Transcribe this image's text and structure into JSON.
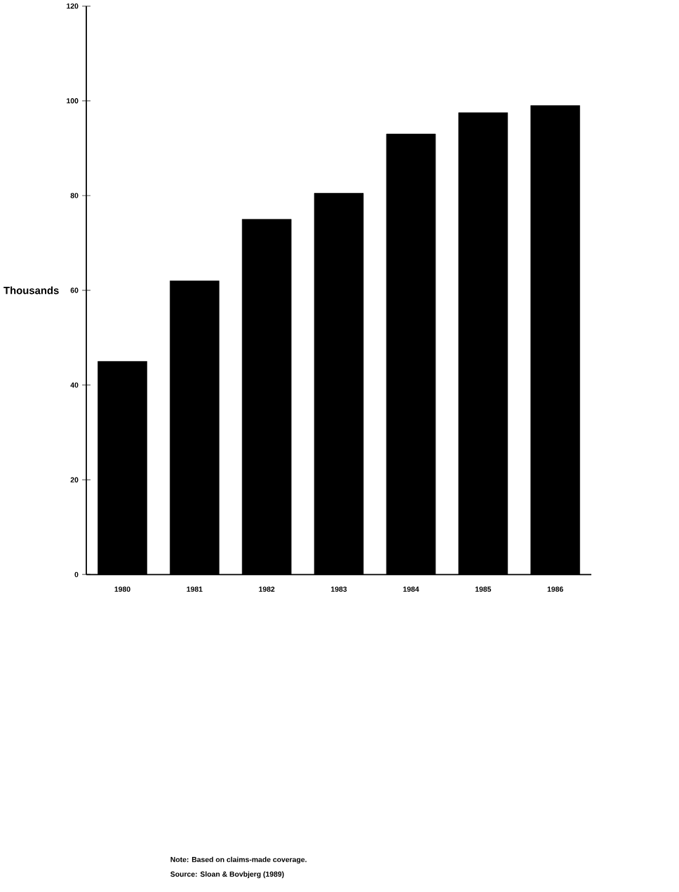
{
  "chart_data": {
    "type": "bar",
    "ylabel": "Thousands",
    "categories": [
      "1980",
      "1981",
      "1982",
      "1983",
      "1984",
      "1985",
      "1986"
    ],
    "values": [
      45,
      62,
      75,
      80.5,
      93,
      97.5,
      99
    ],
    "color": "#000000",
    "ylim": [
      0,
      120
    ],
    "yticks": [
      0,
      20,
      40,
      60,
      80,
      100,
      120
    ],
    "annotations": [
      "Note: Based on claims-made coverage.",
      "Source: Sloan & Bovbjerg (1989)"
    ]
  }
}
